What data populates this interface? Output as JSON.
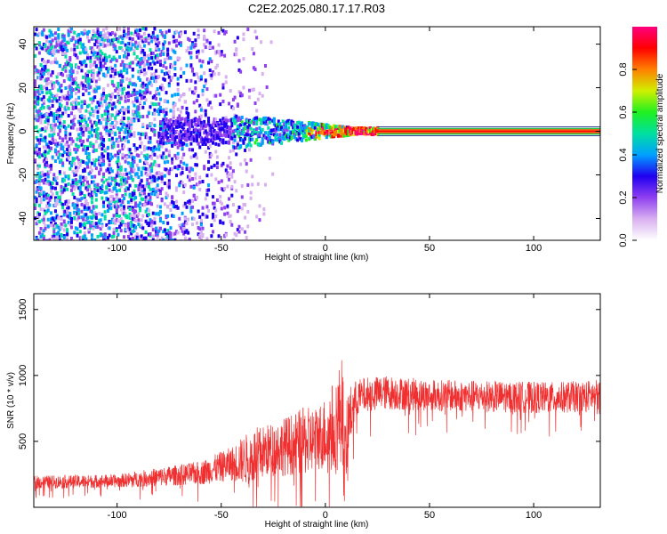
{
  "title": "C2E2.2025.080.17.17.R03",
  "colors": {
    "line": "#f03030",
    "colorbar": [
      "#ffffff",
      "#d8b0f0",
      "#9040f0",
      "#2000f0",
      "#00a0ff",
      "#00e0a0",
      "#20f020",
      "#d0f000",
      "#ff8000",
      "#ff0000",
      "#ff0080"
    ]
  },
  "chart_data": [
    {
      "type": "heatmap",
      "name": "spectrogram",
      "xlabel": "Height of straight line (km)",
      "ylabel": "Frequency (Hz)",
      "xlim": [
        -140,
        132
      ],
      "ylim": [
        -50,
        48
      ],
      "xticks": [
        -100,
        -50,
        0,
        50,
        100
      ],
      "xtick_labels": [
        "-100",
        "-50",
        "0",
        "50",
        "100"
      ],
      "yticks": [
        -40,
        -20,
        0,
        20,
        40
      ],
      "ytick_labels": [
        "-40",
        "-20",
        "0",
        "20",
        "40"
      ],
      "carrier_freq_hz": 0,
      "strong_signal_start_km": -45,
      "clean_carrier_start_km": 25,
      "colorbar": {
        "label": "Normalized spectral amplitude",
        "range": [
          0,
          1
        ],
        "ticks": [
          0.0,
          0.2,
          0.4,
          0.6,
          0.8
        ],
        "tick_labels": [
          "0.0",
          "0.2",
          "0.4",
          "0.6",
          "0.8"
        ]
      }
    },
    {
      "type": "line",
      "name": "snr",
      "xlabel": "Height of straight line (km)",
      "ylabel": "SNR (10 * v/v)",
      "xlim": [
        -140,
        132
      ],
      "ylim": [
        0,
        1620
      ],
      "xticks": [
        -100,
        -50,
        0,
        50,
        100
      ],
      "xtick_labels": [
        "-100",
        "-50",
        "0",
        "50",
        "100"
      ],
      "yticks": [
        500,
        1000,
        1500
      ],
      "ytick_labels": [
        "500",
        "1000",
        "1500"
      ],
      "envelope": {
        "x": [
          -140,
          -100,
          -60,
          -45,
          -35,
          -28,
          -20,
          -10,
          -5,
          0,
          5,
          7,
          8,
          9,
          11,
          15,
          20,
          30,
          50,
          80,
          110,
          132
        ],
        "mean": [
          190,
          200,
          260,
          330,
          380,
          430,
          460,
          500,
          520,
          560,
          620,
          700,
          1000,
          300,
          650,
          830,
          860,
          870,
          850,
          840,
          830,
          850
        ],
        "spread": [
          50,
          50,
          90,
          130,
          220,
          200,
          220,
          260,
          240,
          280,
          380,
          400,
          600,
          300,
          260,
          140,
          130,
          130,
          120,
          120,
          120,
          120
        ]
      }
    }
  ]
}
